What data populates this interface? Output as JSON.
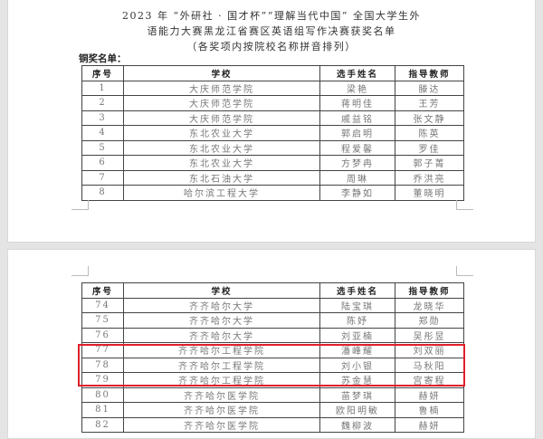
{
  "document": {
    "title_lines": [
      "2023 年 “外研社 · 国才杯”“理解当代中国” 全国大学生外",
      "语能力大赛黑龙江省赛区英语组写作决赛获奖名单",
      "（各奖项内按院校名称拼音排列）"
    ],
    "section_label": "铜奖名单：",
    "headers": [
      "序号",
      "学校",
      "选手姓名",
      "指导教师"
    ],
    "table1": [
      [
        "1",
        "大庆师范学院",
        "梁艳",
        "滕达"
      ],
      [
        "2",
        "大庆师范学院",
        "蒋明佳",
        "王芳"
      ],
      [
        "3",
        "大庆师范学院",
        "戚益铭",
        "张文静"
      ],
      [
        "4",
        "东北农业大学",
        "郭启明",
        "陈英"
      ],
      [
        "5",
        "东北农业大学",
        "程爱馨",
        "罗佳"
      ],
      [
        "6",
        "东北农业大学",
        "方梦冉",
        "郭子菁"
      ],
      [
        "7",
        "东北石油大学",
        "周琳",
        "乔洪亮"
      ],
      [
        "8",
        "哈尔滨工程大学",
        "李静如",
        "董晓明"
      ]
    ],
    "table2": [
      [
        "74",
        "齐齐哈尔大学",
        "陆宝琪",
        "龙晓华"
      ],
      [
        "75",
        "齐齐哈尔大学",
        "陈妤",
        "郑勋"
      ],
      [
        "76",
        "齐齐哈尔大学",
        "刘亚楠",
        "吴彤昱"
      ],
      [
        "77",
        "齐齐哈尔工程学院",
        "潘峰耀",
        "刘双丽"
      ],
      [
        "78",
        "齐齐哈尔工程学院",
        "刘小银",
        "马秋阳"
      ],
      [
        "79",
        "齐齐哈尔工程学院",
        "苏金慧",
        "宫寄程"
      ],
      [
        "80",
        "齐齐哈尔医学院",
        "苗梦琪",
        "赫妍"
      ],
      [
        "81",
        "齐齐哈尔医学院",
        "欧阳明敏",
        "鲁楠"
      ],
      [
        "82",
        "齐齐哈尔医学院",
        "魏柳波",
        "赫妍"
      ]
    ],
    "highlight_color": "#e0202a"
  }
}
